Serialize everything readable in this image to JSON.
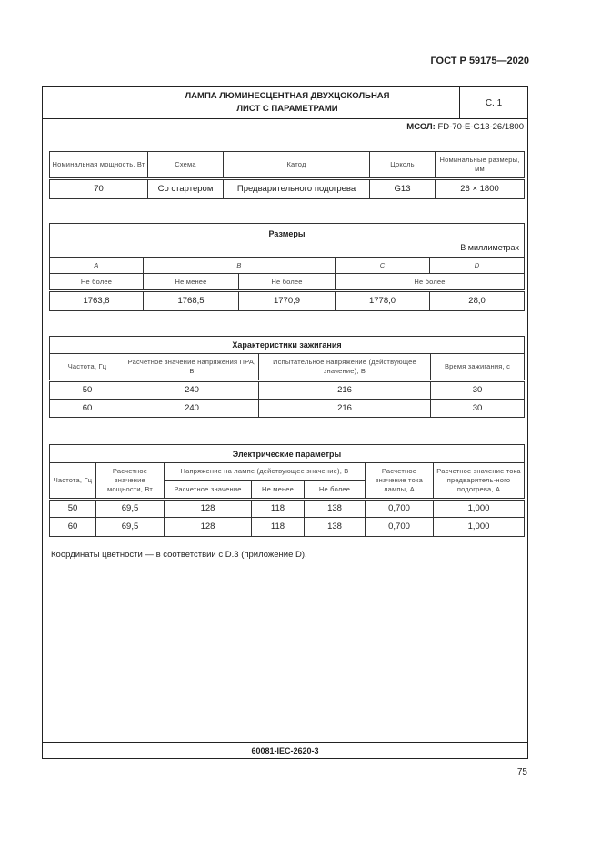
{
  "standard": "ГОСТ Р 59175—2020",
  "header": {
    "title_line1": "ЛАМПА ЛЮМИНЕСЦЕНТНАЯ ДВУХЦОКОЛЬНАЯ",
    "title_line2": "ЛИСТ С ПАРАМЕТРАМИ",
    "sheet": "С. 1"
  },
  "designation": {
    "label": "МСОЛ:",
    "value": " FD-70-E-G13-26/1800"
  },
  "main_table": {
    "headers": [
      "Номинальная мощность, Вт",
      "Схема",
      "Катод",
      "Цоколь",
      "Номинальные размеры, мм"
    ],
    "row": [
      "70",
      "Со стартером",
      "Предварительного подогрева",
      "G13",
      "26 × 1800"
    ]
  },
  "dimensions": {
    "title": "Размеры",
    "unit": "В миллиметрах",
    "letters": [
      "A",
      "B",
      "C",
      "D"
    ],
    "limits": [
      "Не более",
      "Не менее",
      "Не более",
      "Не более"
    ],
    "row": [
      "1763,8",
      "1768,5",
      "1770,9",
      "1778,0",
      "28,0"
    ]
  },
  "ignition": {
    "title": "Характеристики зажигания",
    "headers": [
      "Частота, Гц",
      "Расчетное значение напряжения ПРА, В",
      "Испытательное напряжение (действующее значение), В",
      "Время зажигания, с"
    ],
    "rows": [
      [
        "50",
        "240",
        "216",
        "30"
      ],
      [
        "60",
        "240",
        "216",
        "30"
      ]
    ]
  },
  "electrical": {
    "title": "Электрические параметры",
    "headers": {
      "freq": "Частота, Гц",
      "power": "Расчетное значение мощности, Вт",
      "voltage_group": "Напряжение на лампе (действующее значение), В",
      "v_rated": "Расчетное значение",
      "v_min": "Не менее",
      "v_max": "Не более",
      "current": "Расчетное значение тока лампы, А",
      "preheat": "Расчетное значение тока предваритель-ного подогрева, А"
    },
    "rows": [
      [
        "50",
        "69,5",
        "128",
        "118",
        "138",
        "0,700",
        "1,000"
      ],
      [
        "60",
        "69,5",
        "128",
        "118",
        "138",
        "0,700",
        "1,000"
      ]
    ]
  },
  "note": "Координаты цветности — в соответствии с D.3 (приложение D).",
  "footer": "60081-IEC-2620-3",
  "page_number": "75"
}
